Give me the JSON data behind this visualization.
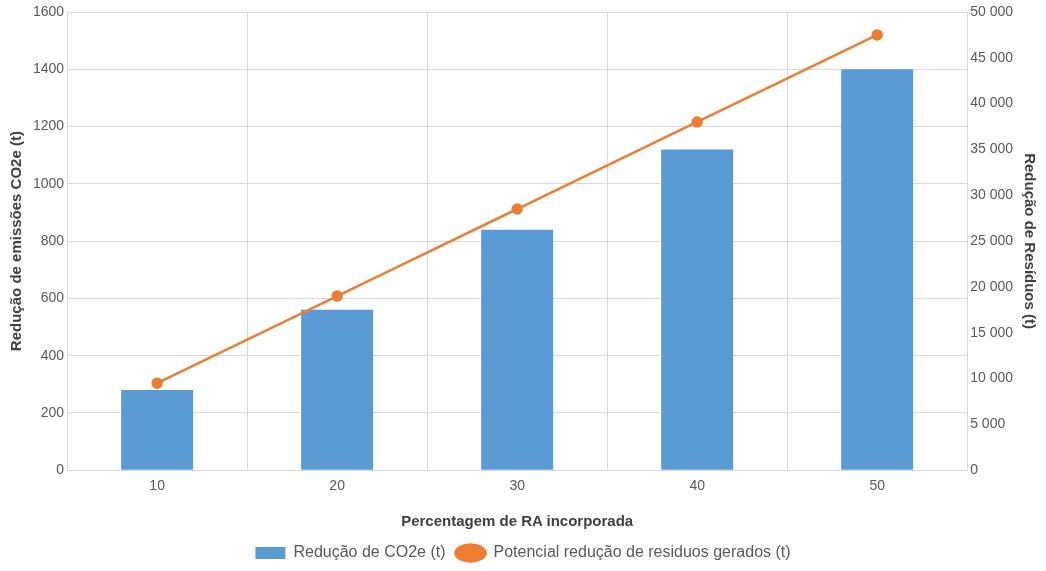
{
  "chart_data": {
    "type": "bar",
    "xlabel": "Percentagem de RA incorporada",
    "ylabel": "Redução de emissões CO2e (t)",
    "y2label": "Redução de Resíduos (t)",
    "categories": [
      "10",
      "20",
      "30",
      "40",
      "50"
    ],
    "series": [
      {
        "name": "Redução de CO2e (t)",
        "color": "#5b9bd5",
        "values": [
          280,
          560,
          840,
          1120,
          1400
        ]
      },
      {
        "name": "Potencial redução de residuos gerados (t)",
        "type": "line",
        "axis": "y2",
        "color": "#ed7d31",
        "values": [
          9500,
          19000,
          28500,
          38000,
          47500
        ]
      }
    ],
    "ylim": [
      0,
      1600
    ],
    "yticks": [
      0,
      200,
      400,
      600,
      800,
      1000,
      1200,
      1400,
      1600
    ],
    "y2lim": [
      0,
      50000
    ],
    "y2ticks": [
      0,
      {
        "value": 5000,
        "label": "5 000"
      },
      {
        "value": 10000,
        "label": "10 000"
      },
      {
        "value": 15000,
        "label": "15 000"
      },
      {
        "value": 20000,
        "label": "20 000"
      },
      {
        "value": 25000,
        "label": "25 000"
      },
      {
        "value": 30000,
        "label": "30 000"
      },
      {
        "value": 35000,
        "label": "35 000"
      },
      {
        "value": 40000,
        "label": "40 000"
      },
      {
        "value": 45000,
        "label": "45 000"
      },
      {
        "value": 50000,
        "label": "50 000"
      }
    ],
    "grid": true,
    "legend": "bottom",
    "marker": "circle",
    "line_style": "solid"
  }
}
